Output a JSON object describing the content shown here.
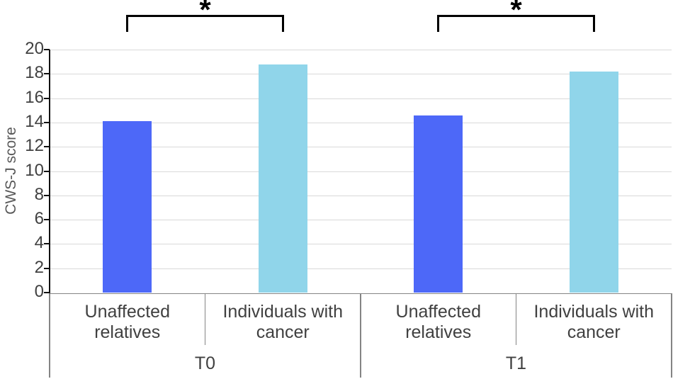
{
  "chart_data": {
    "type": "bar",
    "title": "",
    "ylabel": "CWS-J score",
    "xlabel": "",
    "ylim": [
      0,
      20
    ],
    "ytick_step": 2,
    "yticks": [
      0,
      2,
      4,
      6,
      8,
      10,
      12,
      14,
      16,
      18,
      20
    ],
    "grid": true,
    "legend_position": "none",
    "series_names": [
      "Unaffected relatives",
      "Individuals with cancer"
    ],
    "groups": [
      {
        "label": "T0",
        "bars": [
          {
            "category": "Unaffected\nrelatives",
            "series": "Unaffected relatives",
            "value": 14.1,
            "color": "#4D68F8"
          },
          {
            "category": "Individuals with\ncancer",
            "series": "Individuals with cancer",
            "value": 18.8,
            "color": "#90D5EA"
          }
        ],
        "significance": "*"
      },
      {
        "label": "T1",
        "bars": [
          {
            "category": "Unaffected\nrelatives",
            "series": "Unaffected relatives",
            "value": 14.6,
            "color": "#4D68F8"
          },
          {
            "category": "Individuals with\ncancer",
            "series": "Individuals with cancer",
            "value": 18.2,
            "color": "#90D5EA"
          }
        ],
        "significance": "*"
      }
    ],
    "colors": {
      "bar_unaffected": "#4D68F8",
      "bar_cancer": "#90D5EA",
      "gridline": "#D9D9D9",
      "y_axis_line": "#111111",
      "category_axis_line": "#848484",
      "tick_label_text": "#404040",
      "axis_title_text": "#595959",
      "category_label_text": "#404040",
      "significance_bracket": "#000000",
      "background": "#FFFFFF"
    }
  }
}
